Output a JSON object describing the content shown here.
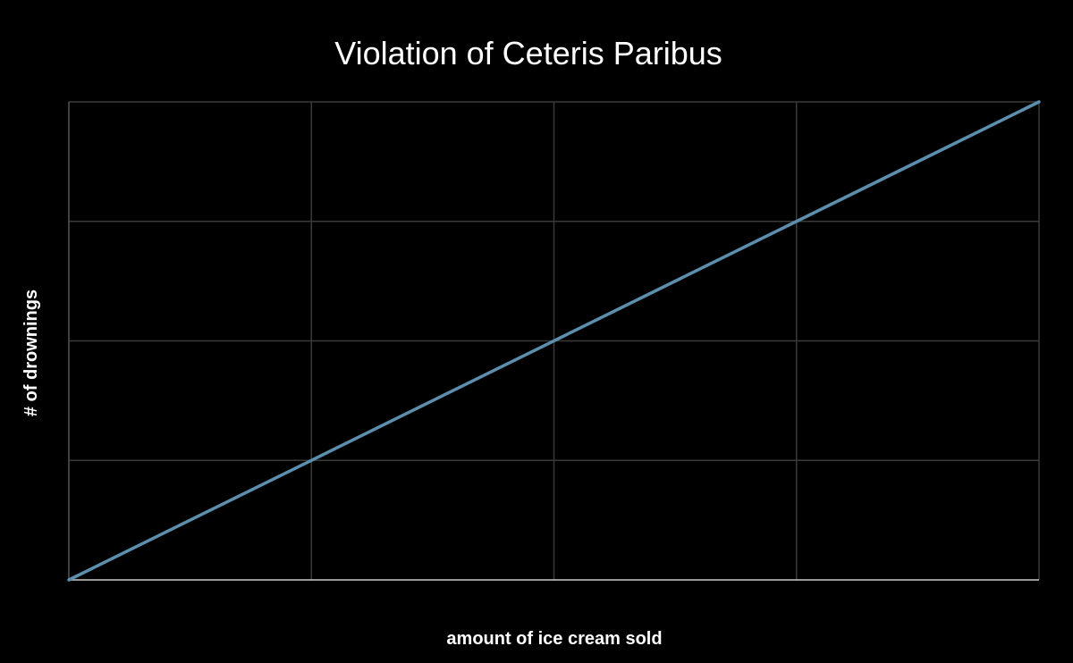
{
  "chart_data": {
    "type": "line",
    "title": "Violation of Ceteris Paribus",
    "xlabel": "amount of ice cream sold",
    "ylabel": "# of drownings",
    "xlim": [
      0,
      4
    ],
    "ylim": [
      0,
      4
    ],
    "x_gridlines": [
      1,
      2,
      3
    ],
    "y_gridlines": [
      1,
      2,
      3,
      4
    ],
    "grid": true,
    "legend": "none",
    "series": [
      {
        "x": [
          0,
          4
        ],
        "y": [
          0,
          4
        ],
        "color": "#5b8fad"
      }
    ],
    "colors": {
      "background": "#000000",
      "grid": "#3a3a3a",
      "axis": "#cccccc",
      "text": "#ffffff"
    }
  }
}
